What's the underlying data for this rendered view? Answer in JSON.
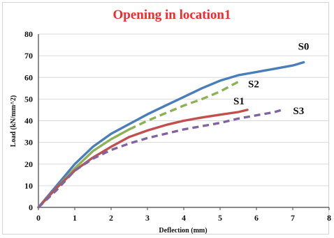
{
  "chart_data": {
    "type": "line",
    "title": "Opening in location1",
    "xlabel": "Deflection (mm)",
    "ylabel": "Load (kN/mm^2)",
    "xlim": [
      0,
      8
    ],
    "ylim": [
      0,
      80
    ],
    "xticks": [
      "0",
      "1",
      "2",
      "3",
      "4",
      "5",
      "6",
      "7",
      "8"
    ],
    "yticks": [
      "0",
      "10",
      "20",
      "30",
      "40",
      "50",
      "60",
      "70",
      "80"
    ],
    "grid": "horizontal",
    "legend": "none",
    "series": [
      {
        "name": "S0",
        "color": "#4a7ebb",
        "dash": "solid",
        "points": [
          [
            0,
            0
          ],
          [
            0.5,
            10
          ],
          [
            1,
            20
          ],
          [
            1.5,
            28
          ],
          [
            2,
            34
          ],
          [
            2.5,
            38.5
          ],
          [
            3,
            43
          ],
          [
            3.5,
            47
          ],
          [
            4,
            51
          ],
          [
            4.5,
            55
          ],
          [
            5,
            58.5
          ],
          [
            5.5,
            61
          ],
          [
            6,
            62.5
          ],
          [
            6.5,
            64
          ],
          [
            7,
            65.5
          ],
          [
            7.3,
            67
          ]
        ]
      },
      {
        "name": "S2",
        "color": "#8db155",
        "dash": "mixed",
        "points": [
          [
            0,
            0
          ],
          [
            0.5,
            9
          ],
          [
            1,
            18
          ],
          [
            1.5,
            26
          ],
          [
            2,
            31.5
          ],
          [
            2.5,
            36
          ],
          [
            3,
            40
          ],
          [
            3.5,
            43.5
          ],
          [
            4,
            47
          ],
          [
            4.5,
            50
          ],
          [
            5,
            53.5
          ],
          [
            5.5,
            58
          ]
        ]
      },
      {
        "name": "S1",
        "color": "#c0504d",
        "dash": "solid",
        "points": [
          [
            0,
            0
          ],
          [
            0.5,
            9
          ],
          [
            1,
            17
          ],
          [
            1.5,
            23
          ],
          [
            2,
            28
          ],
          [
            2.5,
            32.5
          ],
          [
            3,
            35.5
          ],
          [
            3.5,
            38
          ],
          [
            4,
            40
          ],
          [
            4.5,
            41.5
          ],
          [
            5,
            42.8
          ],
          [
            5.5,
            44
          ],
          [
            5.75,
            45
          ]
        ]
      },
      {
        "name": "S3",
        "color": "#8064a2",
        "dash": "dashed",
        "points": [
          [
            0,
            0
          ],
          [
            0.5,
            8
          ],
          [
            1,
            17
          ],
          [
            1.5,
            22.5
          ],
          [
            2,
            26.5
          ],
          [
            2.5,
            29.5
          ],
          [
            3,
            32
          ],
          [
            3.5,
            34
          ],
          [
            4,
            36
          ],
          [
            4.5,
            37.5
          ],
          [
            5,
            39
          ],
          [
            5.5,
            41
          ],
          [
            6,
            42.5
          ],
          [
            6.5,
            44
          ],
          [
            6.7,
            45
          ]
        ]
      }
    ]
  }
}
